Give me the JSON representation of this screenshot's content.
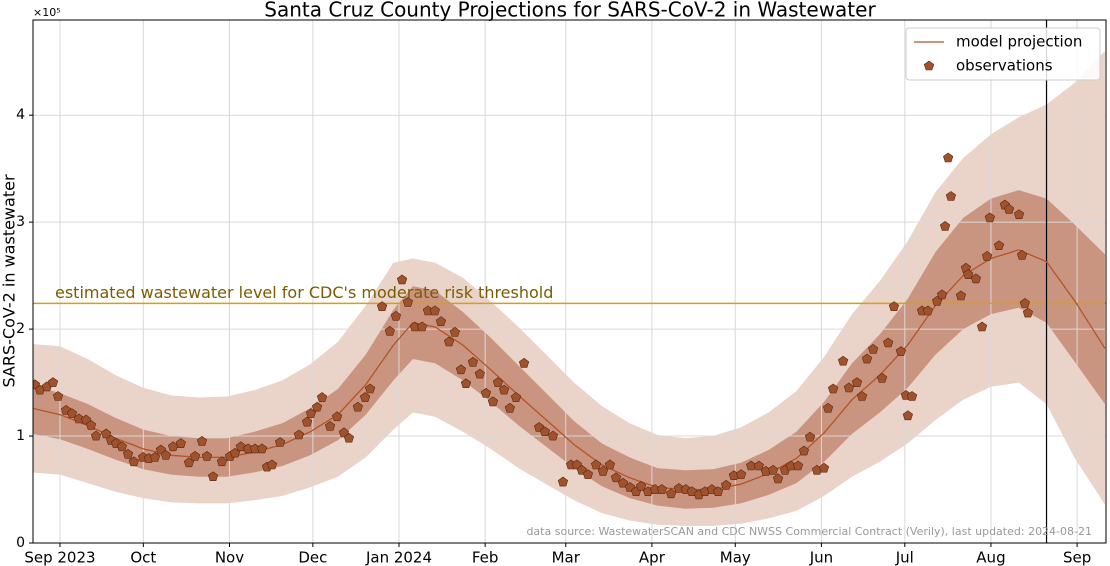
{
  "chart_data": {
    "type": "line",
    "title": "Santa Cruz County Projections for SARS-CoV-2 in Wastewater",
    "y_label": "SARS-CoV-2 in wastewater",
    "y_multiplier_label": "×10⁵",
    "xlim": [
      -9.7,
      376.4
    ],
    "ylim": [
      0,
      4.89
    ],
    "xticks": [
      {
        "value": 0,
        "label": "Sep 2023"
      },
      {
        "value": 30,
        "label": "Oct"
      },
      {
        "value": 61,
        "label": "Nov"
      },
      {
        "value": 91,
        "label": "Dec"
      },
      {
        "value": 122,
        "label": "Jan 2024"
      },
      {
        "value": 153,
        "label": "Feb"
      },
      {
        "value": 182,
        "label": "Mar"
      },
      {
        "value": 213,
        "label": "Apr"
      },
      {
        "value": 243,
        "label": "May"
      },
      {
        "value": 274,
        "label": "Jun"
      },
      {
        "value": 304,
        "label": "Jul"
      },
      {
        "value": 335,
        "label": "Aug"
      },
      {
        "value": 366,
        "label": "Sep"
      }
    ],
    "yticks": [
      0,
      1,
      2,
      3,
      4
    ],
    "grid": true,
    "legend_position": "upper right",
    "threshold": {
      "value": 2.24,
      "color": "#d4a017",
      "label": "estimated wastewater level for CDC's moderate risk threshold",
      "label_color": "#7a5c00"
    },
    "vline_x": 355,
    "vline_color": "#000000",
    "footnote": "data source: WastewaterSCAN and CDC NWSS Commercial Contract (Verily), last updated: 2024-08-21",
    "bands": [
      {
        "color": "#ead3c8",
        "x": [
          -10,
          0,
          10,
          20,
          30,
          40,
          50,
          60,
          70,
          80,
          90,
          100,
          110,
          120,
          127,
          135,
          145,
          155,
          165,
          175,
          185,
          195,
          205,
          215,
          225,
          235,
          245,
          255,
          265,
          275,
          285,
          295,
          305,
          315,
          325,
          335,
          345,
          355,
          365,
          376
        ],
        "lower": [
          0.66,
          0.64,
          0.56,
          0.48,
          0.42,
          0.38,
          0.37,
          0.37,
          0.4,
          0.44,
          0.52,
          0.62,
          0.8,
          1.06,
          1.22,
          1.18,
          1.04,
          0.88,
          0.7,
          0.55,
          0.4,
          0.28,
          0.21,
          0.17,
          0.16,
          0.16,
          0.18,
          0.23,
          0.3,
          0.44,
          0.62,
          0.76,
          0.93,
          1.15,
          1.34,
          1.46,
          1.5,
          1.3,
          0.8,
          0.36
        ],
        "upper": [
          1.86,
          1.84,
          1.72,
          1.57,
          1.45,
          1.38,
          1.36,
          1.37,
          1.43,
          1.52,
          1.67,
          1.88,
          2.22,
          2.62,
          2.66,
          2.62,
          2.48,
          2.26,
          2.02,
          1.76,
          1.5,
          1.28,
          1.12,
          1.01,
          0.98,
          1.0,
          1.08,
          1.22,
          1.42,
          1.74,
          2.14,
          2.45,
          2.82,
          3.28,
          3.6,
          3.82,
          3.98,
          4.1,
          4.3,
          4.6
        ]
      },
      {
        "color": "#c99480",
        "x": [
          -10,
          0,
          10,
          20,
          30,
          40,
          50,
          60,
          70,
          80,
          90,
          100,
          110,
          120,
          127,
          135,
          145,
          155,
          165,
          175,
          185,
          195,
          205,
          215,
          225,
          235,
          245,
          255,
          265,
          275,
          285,
          295,
          305,
          315,
          325,
          335,
          345,
          355,
          365,
          376
        ],
        "lower": [
          1.02,
          0.97,
          0.88,
          0.78,
          0.69,
          0.64,
          0.62,
          0.62,
          0.66,
          0.72,
          0.82,
          0.96,
          1.2,
          1.52,
          1.72,
          1.68,
          1.52,
          1.32,
          1.1,
          0.9,
          0.7,
          0.53,
          0.42,
          0.35,
          0.32,
          0.33,
          0.37,
          0.45,
          0.56,
          0.76,
          1.02,
          1.22,
          1.45,
          1.76,
          2.0,
          2.14,
          2.2,
          2.06,
          1.7,
          1.3
        ],
        "upper": [
          1.48,
          1.4,
          1.3,
          1.17,
          1.06,
          1.0,
          0.98,
          0.98,
          1.04,
          1.12,
          1.26,
          1.44,
          1.76,
          2.18,
          2.4,
          2.36,
          2.16,
          1.92,
          1.66,
          1.4,
          1.14,
          0.93,
          0.8,
          0.7,
          0.68,
          0.69,
          0.75,
          0.87,
          1.04,
          1.32,
          1.68,
          1.95,
          2.28,
          2.72,
          3.04,
          3.22,
          3.3,
          3.22,
          2.98,
          2.7
        ]
      }
    ],
    "series": [
      {
        "name": "model projection",
        "type": "line",
        "color": "#b5532a",
        "x": [
          -10,
          0,
          10,
          20,
          30,
          40,
          50,
          60,
          70,
          80,
          90,
          100,
          110,
          120,
          127,
          135,
          145,
          155,
          165,
          175,
          185,
          195,
          205,
          215,
          225,
          235,
          245,
          255,
          265,
          275,
          285,
          295,
          305,
          315,
          325,
          335,
          345,
          355,
          365,
          376
        ],
        "values": [
          1.26,
          1.2,
          1.1,
          0.98,
          0.88,
          0.82,
          0.8,
          0.8,
          0.85,
          0.92,
          1.04,
          1.2,
          1.48,
          1.85,
          2.06,
          2.02,
          1.85,
          1.62,
          1.38,
          1.15,
          0.92,
          0.73,
          0.61,
          0.52,
          0.5,
          0.5,
          0.55,
          0.65,
          0.79,
          1.03,
          1.34,
          1.57,
          1.85,
          2.22,
          2.5,
          2.66,
          2.74,
          2.63,
          2.27,
          1.82
        ]
      },
      {
        "name": "observations",
        "type": "scatter",
        "color": "#a0522d",
        "x": [
          -9,
          -7.2,
          -4.7,
          -2.5,
          -0.7,
          2.2,
          4.3,
          6.8,
          9.4,
          11.2,
          13,
          16.6,
          18.4,
          20.2,
          22.3,
          24.5,
          26.6,
          29.9,
          32,
          34.2,
          36.3,
          38.1,
          40.7,
          43.5,
          46.4,
          48.6,
          51.1,
          52.9,
          55.1,
          58.3,
          61.2,
          63,
          65.1,
          67.7,
          70.2,
          72.7,
          74.5,
          76.3,
          79.2,
          86,
          88.9,
          90.3,
          92.5,
          94.3,
          97.2,
          99.7,
          102.2,
          104,
          107.2,
          109.8,
          111.6,
          115.9,
          118.7,
          120.9,
          123.1,
          125.2,
          127.7,
          130.3,
          132.4,
          134.9,
          137.1,
          140,
          142.1,
          144.3,
          146.1,
          148.6,
          151.1,
          153.3,
          155.8,
          157.6,
          159.8,
          161.9,
          164.1,
          167,
          172.4,
          174.5,
          177.4,
          181,
          183.9,
          186,
          187.8,
          190,
          192.9,
          195.4,
          197.9,
          200.1,
          202.6,
          205.1,
          207.3,
          209.1,
          211.6,
          214.1,
          216.6,
          219.9,
          222.7,
          225.2,
          227.4,
          229.9,
          232.1,
          234.6,
          236.8,
          239.7,
          242.5,
          245.1,
          248.7,
          251.5,
          254,
          256.6,
          258.4,
          260.9,
          263,
          265.6,
          267.7,
          269.9,
          272.4,
          274.9,
          276.4,
          278.2,
          281.8,
          283.9,
          286.8,
          288.6,
          290.4,
          292.6,
          295.8,
          298,
          300.1,
          302.6,
          304.4,
          305.1,
          306.6,
          310.2,
          312.3,
          315.6,
          317.4,
          318.5,
          319.6,
          320.6,
          324.2,
          326,
          326.8,
          329.6,
          331.8,
          333.6,
          334.6,
          337.9,
          340,
          341.5,
          345.1,
          346.2,
          347.2,
          348.3
        ],
        "values": [
          1.48,
          1.43,
          1.46,
          1.5,
          1.37,
          1.24,
          1.21,
          1.16,
          1.15,
          1.1,
          1.0,
          1.02,
          0.96,
          0.93,
          0.9,
          0.83,
          0.76,
          0.8,
          0.79,
          0.8,
          0.87,
          0.82,
          0.9,
          0.93,
          0.75,
          0.81,
          0.95,
          0.81,
          0.62,
          0.76,
          0.81,
          0.84,
          0.9,
          0.88,
          0.88,
          0.88,
          0.71,
          0.73,
          0.94,
          1.01,
          1.13,
          1.21,
          1.27,
          1.36,
          1.09,
          1.18,
          1.03,
          0.98,
          1.27,
          1.36,
          1.44,
          2.21,
          1.98,
          2.12,
          2.46,
          2.25,
          2.02,
          2.02,
          2.17,
          2.17,
          2.07,
          1.88,
          1.97,
          1.62,
          1.49,
          1.69,
          1.58,
          1.4,
          1.32,
          1.5,
          1.43,
          1.26,
          1.36,
          1.68,
          1.08,
          1.04,
          1.0,
          0.57,
          0.73,
          0.73,
          0.68,
          0.64,
          0.73,
          0.67,
          0.73,
          0.61,
          0.56,
          0.52,
          0.48,
          0.53,
          0.48,
          0.5,
          0.5,
          0.46,
          0.51,
          0.5,
          0.48,
          0.45,
          0.48,
          0.5,
          0.48,
          0.54,
          0.63,
          0.64,
          0.72,
          0.72,
          0.67,
          0.68,
          0.6,
          0.68,
          0.72,
          0.72,
          0.86,
          0.99,
          0.68,
          0.7,
          1.26,
          1.44,
          1.7,
          1.45,
          1.5,
          1.37,
          1.72,
          1.81,
          1.54,
          1.87,
          2.21,
          1.79,
          1.38,
          1.19,
          1.37,
          2.17,
          2.17,
          2.26,
          2.32,
          2.96,
          3.6,
          3.24,
          2.31,
          2.57,
          2.51,
          2.47,
          2.02,
          2.68,
          3.04,
          2.78,
          3.16,
          3.12,
          3.07,
          2.69,
          2.24,
          2.15
        ]
      }
    ]
  }
}
